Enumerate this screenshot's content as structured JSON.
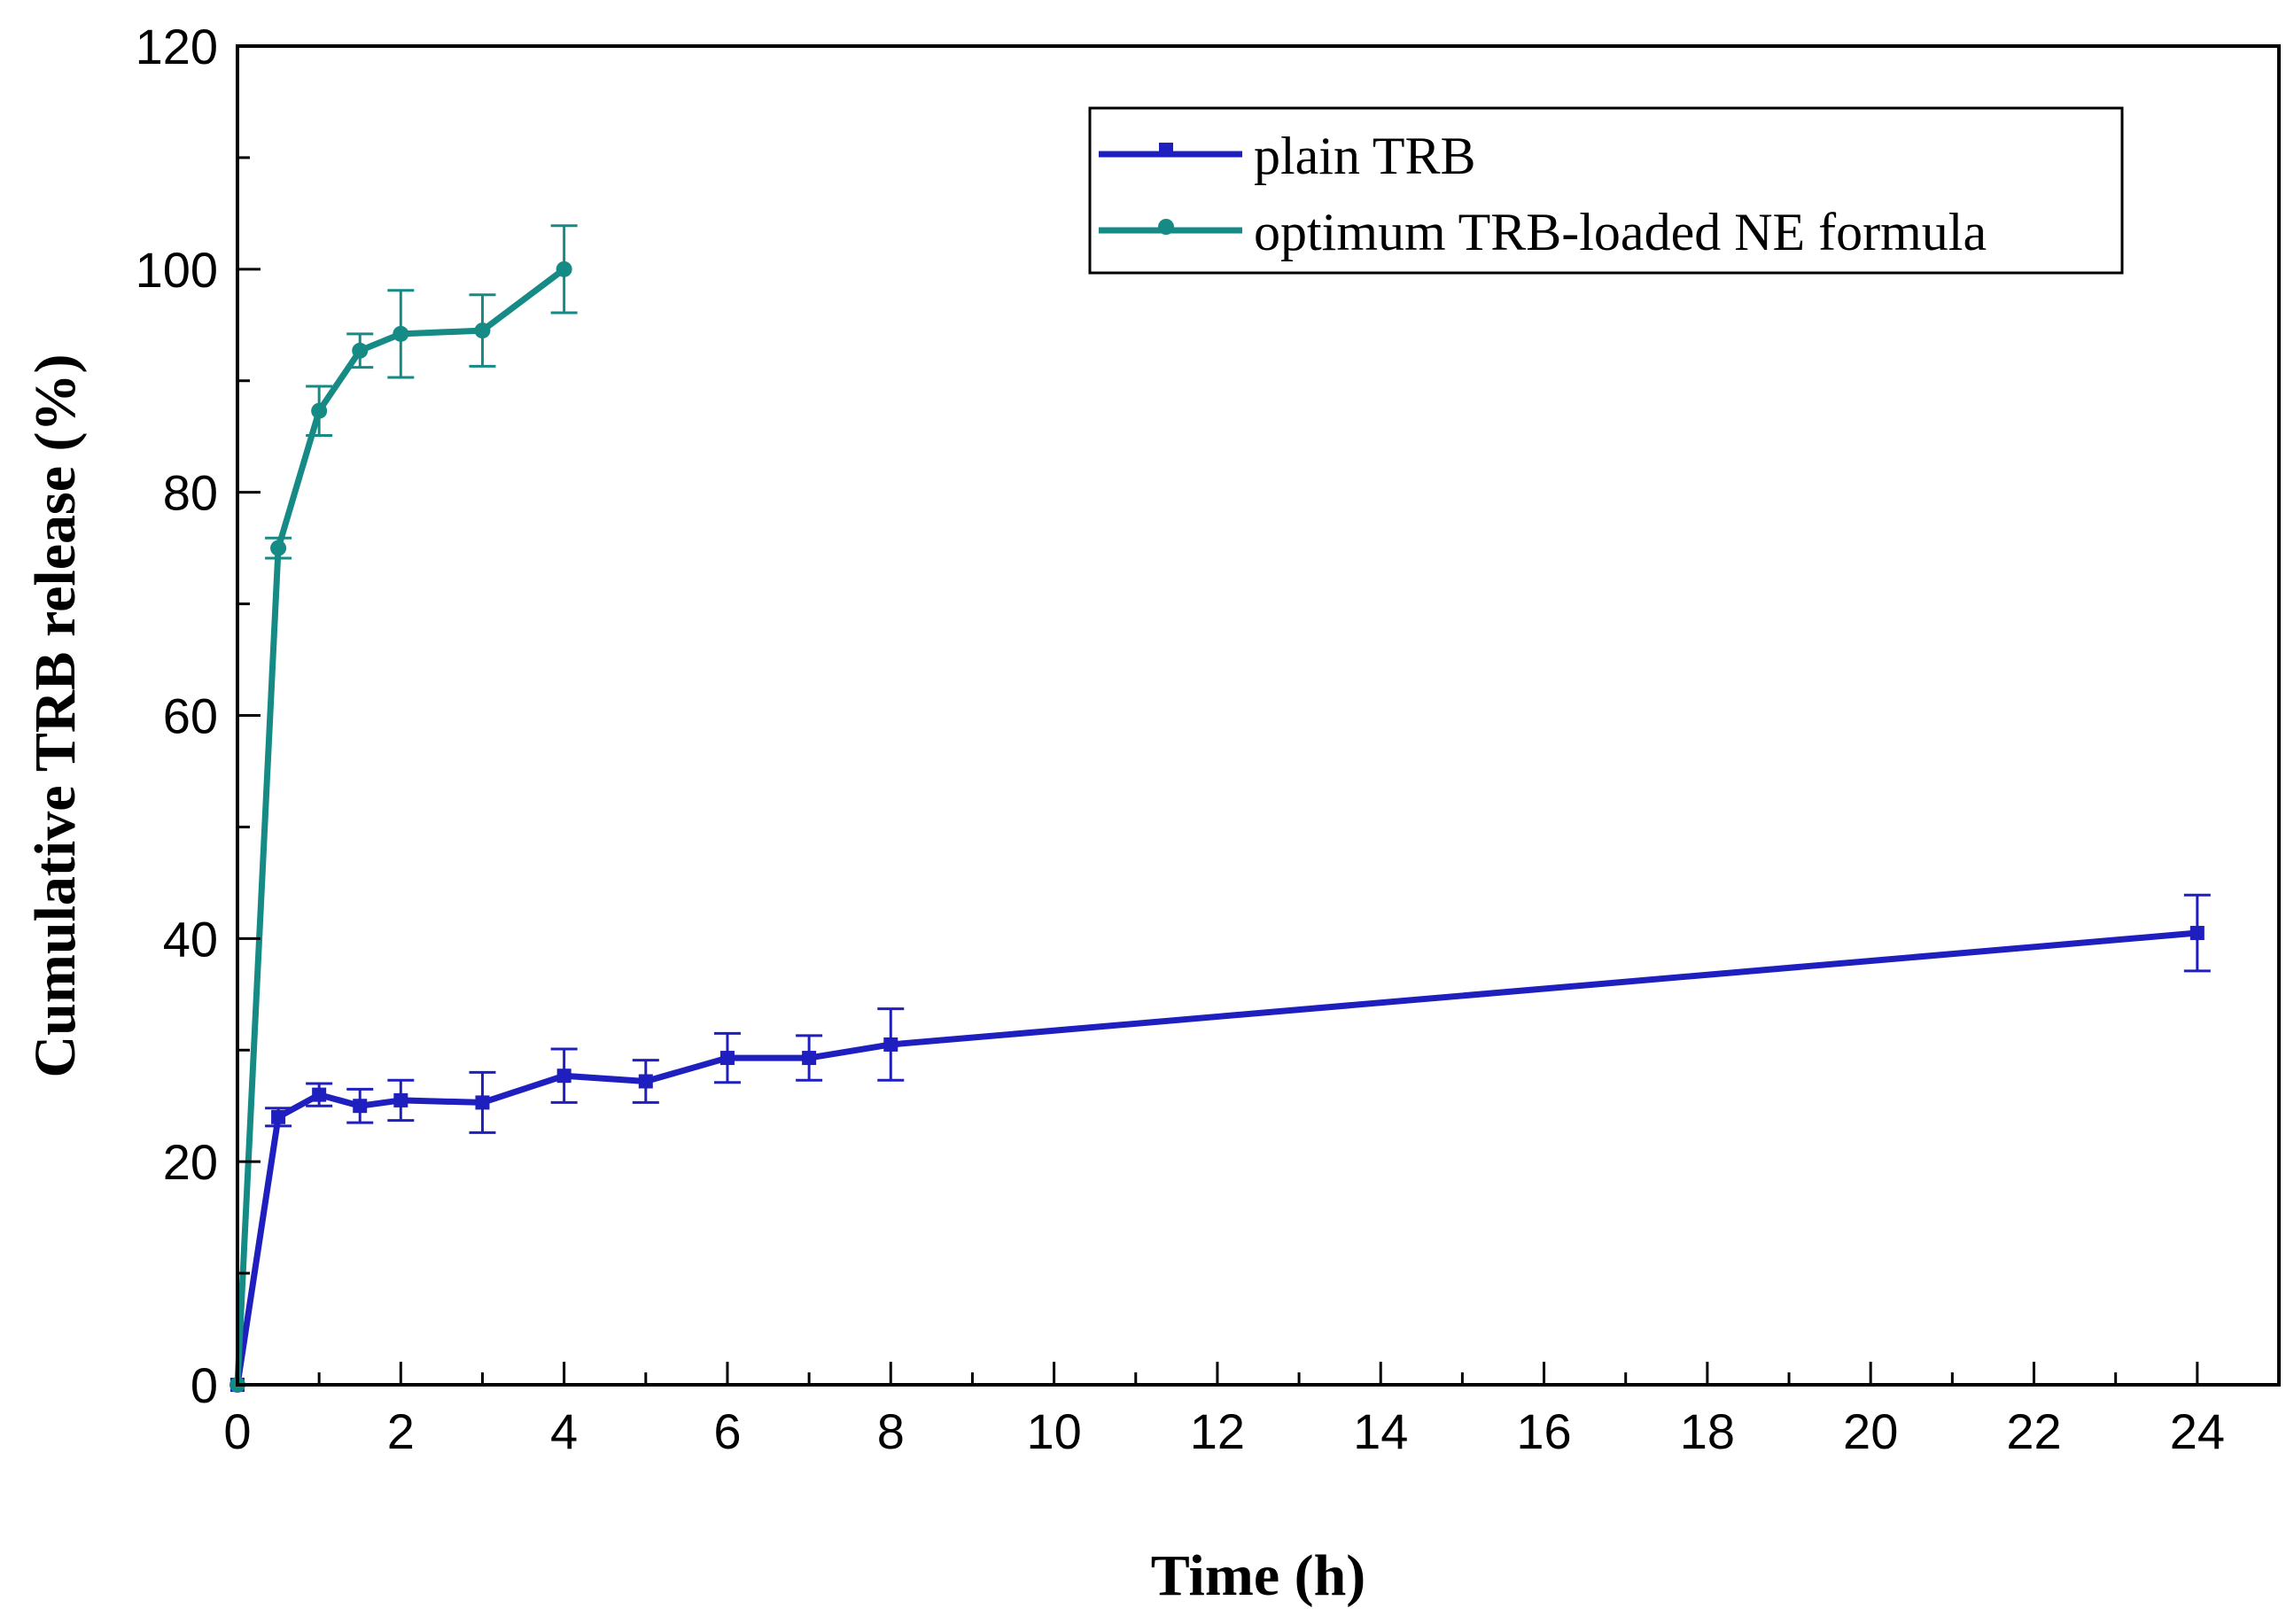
{
  "chart_data": {
    "type": "line",
    "title": "",
    "xlabel": "Time (h)",
    "ylabel": "Cumulative TRB release (%)",
    "xlim": [
      0,
      25
    ],
    "ylim": [
      0,
      120
    ],
    "xticks": [
      0,
      2,
      4,
      6,
      8,
      10,
      12,
      14,
      16,
      18,
      20,
      22,
      24
    ],
    "yticks": [
      0,
      20,
      40,
      60,
      80,
      100,
      120
    ],
    "grid": false,
    "legend_position": "top-right",
    "series": [
      {
        "name": "plain TRB",
        "color": "#1f1fbf",
        "marker": "square",
        "x": [
          0,
          0.5,
          1,
          1.5,
          2,
          3,
          4,
          5,
          6,
          7,
          8,
          24
        ],
        "y": [
          0,
          24,
          26,
          25,
          25.5,
          25.3,
          27.7,
          27.2,
          29.3,
          29.3,
          30.5,
          40.5
        ],
        "error": [
          0,
          0.8,
          1.0,
          1.5,
          1.8,
          2.7,
          2.4,
          1.9,
          2.2,
          2.0,
          3.2,
          3.4
        ]
      },
      {
        "name": "optimum TRB-loaded NE formula",
        "color": "#168a84",
        "marker": "circle",
        "x": [
          0,
          0.5,
          1,
          1.5,
          2,
          3,
          4
        ],
        "y": [
          0,
          75,
          87.3,
          92.7,
          94.2,
          94.5,
          100
        ],
        "error": [
          0,
          0.9,
          2.2,
          1.5,
          3.9,
          3.2,
          3.9
        ]
      }
    ]
  }
}
